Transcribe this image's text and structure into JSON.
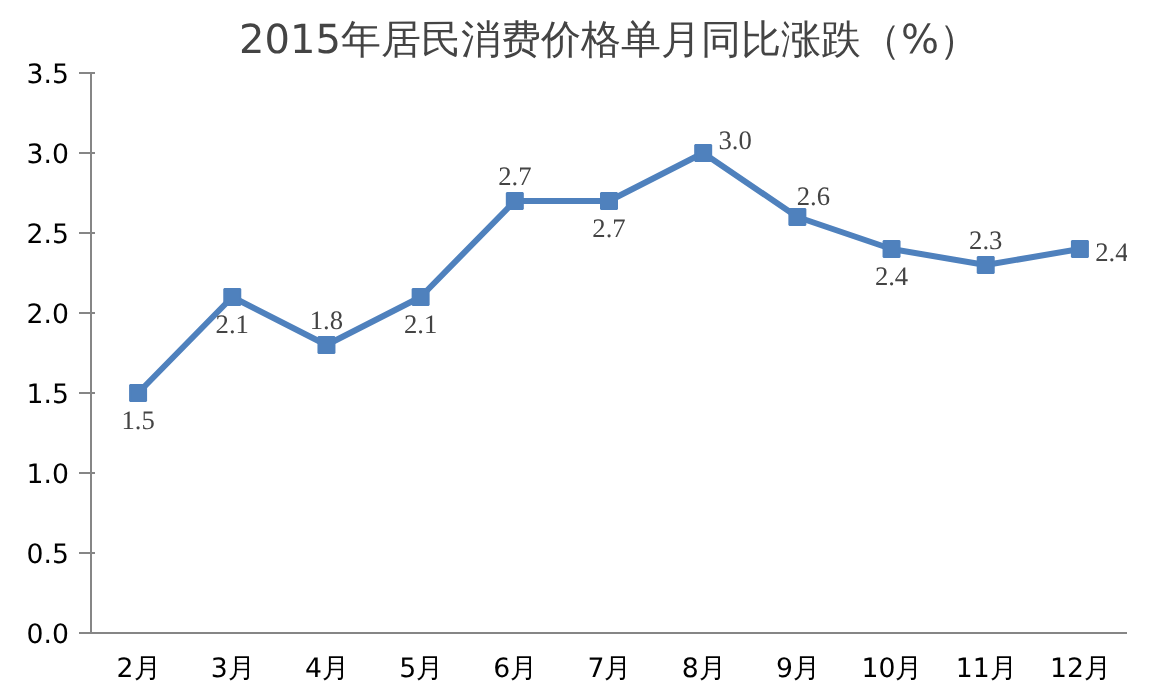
{
  "chart_data": {
    "type": "line",
    "title": "2015年居民消费价格单月同比涨跌（%）",
    "categories": [
      "2月",
      "3月",
      "4月",
      "5月",
      "6月",
      "7月",
      "8月",
      "9月",
      "10月",
      "11月",
      "12月"
    ],
    "series": [
      {
        "color": "#4f81bd",
        "values": [
          1.5,
          2.1,
          1.8,
          2.1,
          2.7,
          2.7,
          3.0,
          2.6,
          2.4,
          2.3,
          2.4
        ],
        "value_labels": [
          "1.5",
          "2.1",
          "1.8",
          "2.1",
          "2.7",
          "2.7",
          "3.0",
          "2.6",
          "2.4",
          "2.3",
          "2.4"
        ]
      }
    ],
    "ylim": [
      0.0,
      3.5
    ],
    "yticks": [
      {
        "value": 0,
        "label": "0.0"
      },
      {
        "value": 0.5,
        "label": "0.5"
      },
      {
        "value": 1,
        "label": "1.0"
      },
      {
        "value": 1.5,
        "label": "1.5"
      },
      {
        "value": 2,
        "label": "2.0"
      },
      {
        "value": 2.5,
        "label": "2.5"
      },
      {
        "value": 3,
        "label": "3.0"
      },
      {
        "value": 3.5,
        "label": "3.5"
      }
    ],
    "marker": "square",
    "line_style": "solid"
  }
}
